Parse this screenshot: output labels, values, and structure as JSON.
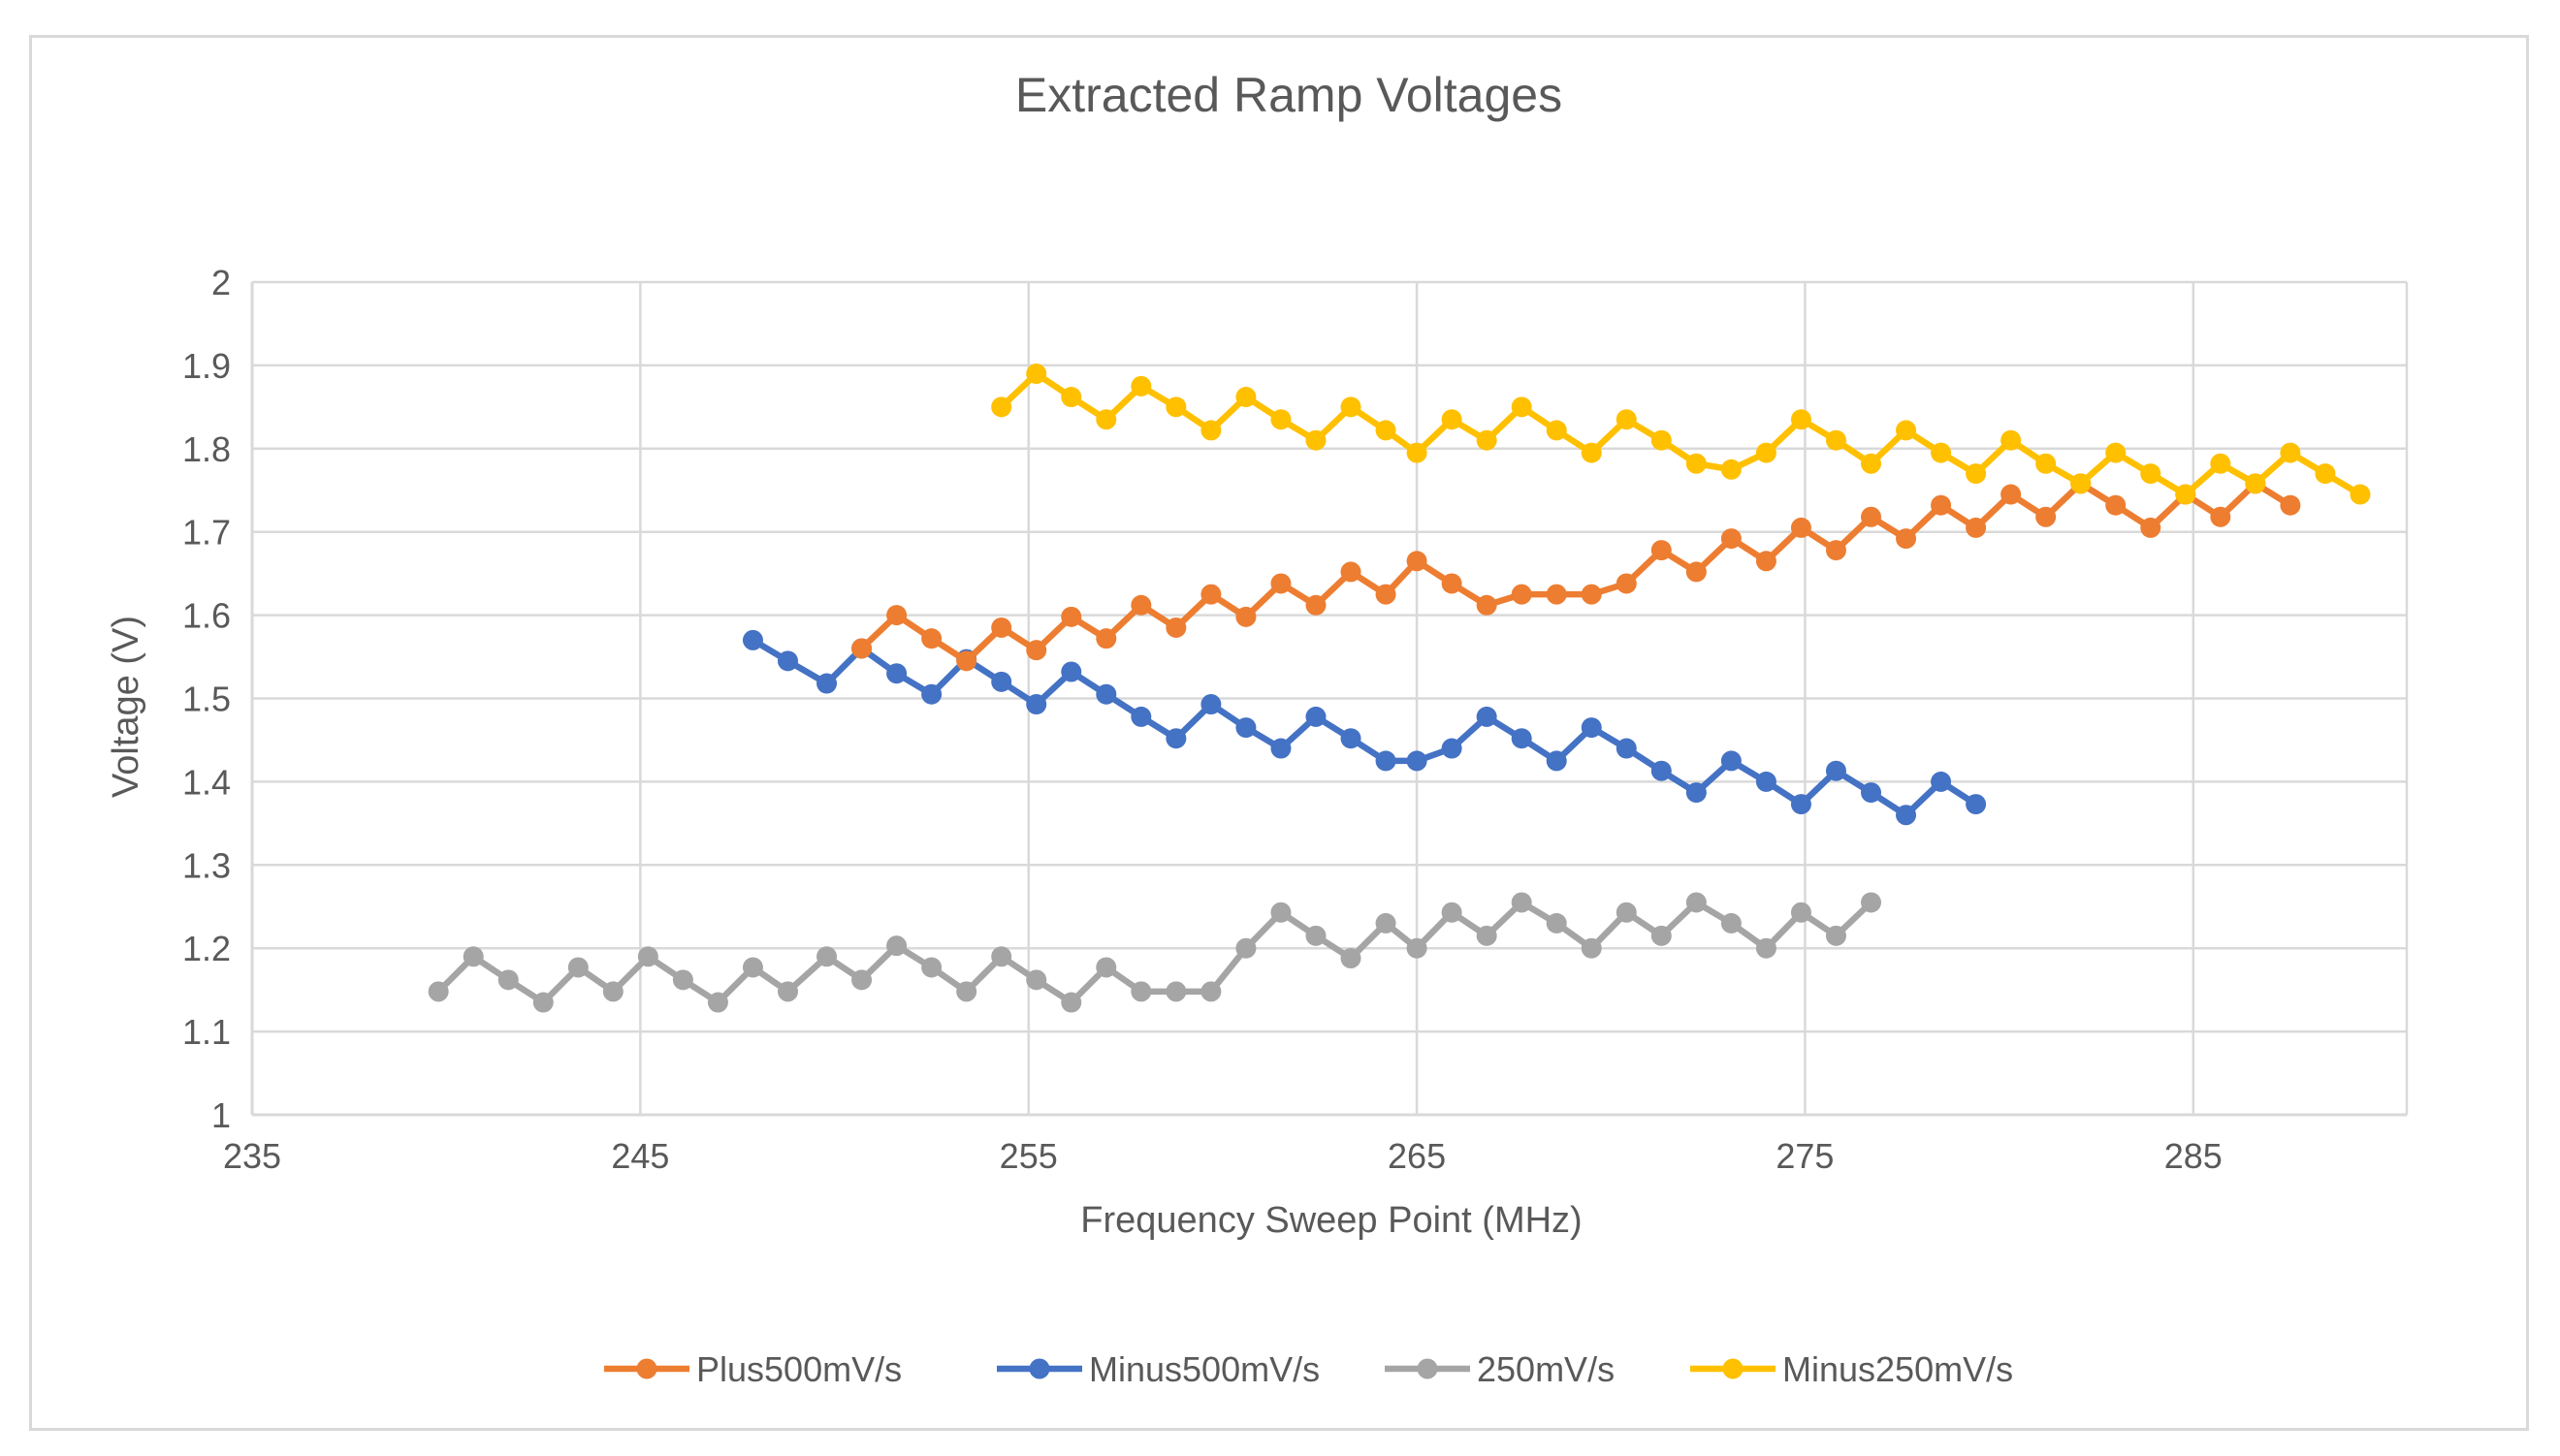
{
  "chart_data": {
    "type": "line",
    "title": "Extracted Ramp Voltages",
    "xlabel": "Frequency Sweep Point (MHz)",
    "ylabel": "Voltage (V)",
    "xlim": [
      235,
      290.5
    ],
    "ylim": [
      1,
      2
    ],
    "xticks": [
      235,
      245,
      255,
      265,
      275,
      285
    ],
    "xtick_labels": [
      "235",
      "245",
      "255",
      "265",
      "275",
      "285"
    ],
    "yticks": [
      1,
      1.1,
      1.2,
      1.3,
      1.4,
      1.5,
      1.6,
      1.7,
      1.8,
      1.9,
      2
    ],
    "ytick_labels": [
      "1",
      "1.1",
      "1.2",
      "1.3",
      "1.4",
      "1.5",
      "1.6",
      "1.7",
      "1.8",
      "1.9",
      "2"
    ],
    "grid": true,
    "legend_position": "bottom",
    "colors": {
      "Plus500mV/s": "#ed7d31",
      "Minus500mV/s": "#4472c4",
      "250mV/s": "#a5a5a5",
      "Minus250mV/s": "#ffc000",
      "grid": "#d9d9d9",
      "text": "#595959"
    },
    "series": [
      {
        "name": "Minus500mV/s",
        "x": [
          247.9,
          248.8,
          249.8,
          250.7,
          251.6,
          252.5,
          253.4,
          254.3,
          255.2,
          256.1,
          257.0,
          257.9,
          258.8,
          259.7,
          260.6,
          261.5,
          262.4,
          263.3,
          264.2,
          265.0,
          265.9,
          266.8,
          267.7,
          268.6,
          269.5,
          270.4,
          271.3,
          272.2,
          273.1,
          274.0,
          274.9,
          275.8,
          276.7,
          277.6,
          278.5,
          279.4
        ],
        "values": [
          1.57,
          1.545,
          1.518,
          1.56,
          1.53,
          1.505,
          1.547,
          1.52,
          1.493,
          1.532,
          1.505,
          1.478,
          1.452,
          1.493,
          1.465,
          1.44,
          1.478,
          1.452,
          1.425,
          1.425,
          1.44,
          1.478,
          1.452,
          1.425,
          1.465,
          1.44,
          1.413,
          1.387,
          1.425,
          1.4,
          1.373,
          1.413,
          1.387,
          1.36,
          1.4,
          1.373
        ]
      },
      {
        "name": "Plus500mV/s",
        "x": [
          250.7,
          251.6,
          252.5,
          253.4,
          254.3,
          255.2,
          256.1,
          257.0,
          257.9,
          258.8,
          259.7,
          260.6,
          261.5,
          262.4,
          263.3,
          264.2,
          265.0,
          265.9,
          266.8,
          267.7,
          268.6,
          269.5,
          270.4,
          271.3,
          272.2,
          273.1,
          274.0,
          274.9,
          275.8,
          276.7,
          277.6,
          278.5,
          279.4,
          280.3,
          281.2,
          282.1,
          283.0,
          283.9,
          284.8,
          285.7,
          286.6,
          287.5
        ],
        "values": [
          1.56,
          1.6,
          1.572,
          1.545,
          1.585,
          1.558,
          1.598,
          1.572,
          1.612,
          1.585,
          1.625,
          1.598,
          1.638,
          1.612,
          1.652,
          1.625,
          1.665,
          1.638,
          1.612,
          1.625,
          1.625,
          1.625,
          1.638,
          1.678,
          1.652,
          1.692,
          1.665,
          1.705,
          1.678,
          1.718,
          1.692,
          1.732,
          1.705,
          1.745,
          1.718,
          1.758,
          1.732,
          1.705,
          1.745,
          1.718,
          1.758,
          1.732
        ]
      },
      {
        "name": "250mV/s",
        "x": [
          239.8,
          240.7,
          241.6,
          242.5,
          243.4,
          244.3,
          245.2,
          246.1,
          247.0,
          247.9,
          248.8,
          249.8,
          250.7,
          251.6,
          252.5,
          253.4,
          254.3,
          255.2,
          256.1,
          257.0,
          257.9,
          258.8,
          259.7,
          260.6,
          261.5,
          262.4,
          263.3,
          264.2,
          265.0,
          265.9,
          266.8,
          267.7,
          268.6,
          269.5,
          270.4,
          271.3,
          272.2,
          273.1,
          274.0,
          274.9,
          275.8,
          276.7
        ],
        "values": [
          1.148,
          1.19,
          1.162,
          1.135,
          1.177,
          1.148,
          1.19,
          1.162,
          1.135,
          1.177,
          1.148,
          1.19,
          1.162,
          1.203,
          1.177,
          1.148,
          1.19,
          1.162,
          1.135,
          1.177,
          1.148,
          1.148,
          1.148,
          1.2,
          1.243,
          1.215,
          1.188,
          1.23,
          1.2,
          1.243,
          1.215,
          1.255,
          1.23,
          1.2,
          1.243,
          1.215,
          1.255,
          1.23,
          1.2,
          1.243,
          1.215,
          1.255
        ]
      },
      {
        "name": "Minus250mV/s",
        "x": [
          254.3,
          255.2,
          256.1,
          257.0,
          257.9,
          258.8,
          259.7,
          260.6,
          261.5,
          262.4,
          263.3,
          264.2,
          265.0,
          265.9,
          266.8,
          267.7,
          268.6,
          269.5,
          270.4,
          271.3,
          272.2,
          273.1,
          274.0,
          274.9,
          275.8,
          276.7,
          277.6,
          278.5,
          279.4,
          280.3,
          281.2,
          282.1,
          283.0,
          283.9,
          284.8,
          285.7,
          286.6,
          287.5,
          288.4,
          289.3
        ],
        "values": [
          1.85,
          1.89,
          1.862,
          1.835,
          1.875,
          1.85,
          1.822,
          1.862,
          1.835,
          1.81,
          1.85,
          1.822,
          1.795,
          1.835,
          1.81,
          1.85,
          1.822,
          1.795,
          1.835,
          1.81,
          1.782,
          1.775,
          1.795,
          1.835,
          1.81,
          1.782,
          1.822,
          1.795,
          1.77,
          1.81,
          1.782,
          1.758,
          1.795,
          1.77,
          1.745,
          1.782,
          1.758,
          1.795,
          1.77,
          1.745
        ]
      }
    ]
  }
}
